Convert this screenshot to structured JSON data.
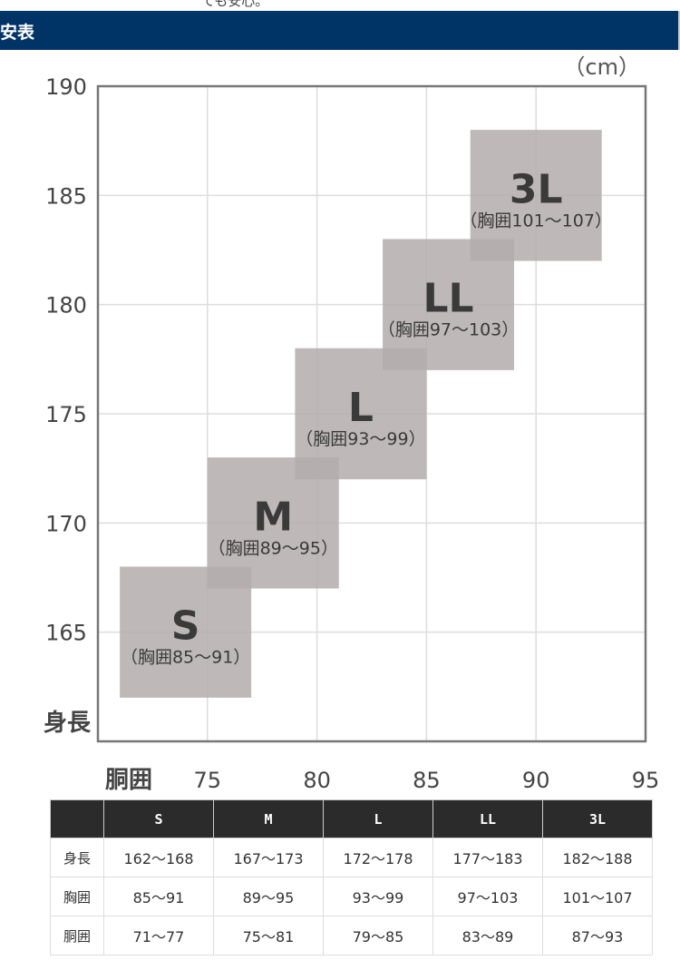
{
  "top_text": "ても安心。",
  "header": {
    "title": "安表",
    "color": "#003366"
  },
  "chart_data": {
    "type": "box-range",
    "unit_label": "（cm）",
    "xlabel": "胴囲",
    "ylabel": "身長",
    "xlim": [
      70,
      95
    ],
    "ylim": [
      160,
      190
    ],
    "xticks": [
      75,
      80,
      85,
      90,
      95
    ],
    "yticks": [
      165,
      170,
      175,
      180,
      185,
      190
    ],
    "grid": true,
    "box_color": "#b3acac",
    "boxes": [
      {
        "size": "S",
        "chest": "（胸囲85～91）",
        "waist": [
          71,
          77
        ],
        "height": [
          162,
          168
        ]
      },
      {
        "size": "M",
        "chest": "（胸囲89～95）",
        "waist": [
          75,
          81
        ],
        "height": [
          167,
          173
        ]
      },
      {
        "size": "L",
        "chest": "（胸囲93～99）",
        "waist": [
          79,
          85
        ],
        "height": [
          172,
          178
        ]
      },
      {
        "size": "LL",
        "chest": "（胸囲97～103）",
        "waist": [
          83,
          89
        ],
        "height": [
          177,
          183
        ]
      },
      {
        "size": "3L",
        "chest": "（胸囲101～107）",
        "waist": [
          87,
          93
        ],
        "height": [
          182,
          188
        ]
      }
    ]
  },
  "table": {
    "headers": [
      "",
      "S",
      "M",
      "L",
      "LL",
      "3L"
    ],
    "rows": [
      {
        "label": "身長",
        "values": [
          "162～168",
          "167～173",
          "172～178",
          "177～183",
          "182～188"
        ]
      },
      {
        "label": "胸囲",
        "values": [
          "85～91",
          "89～95",
          "93～99",
          "97～103",
          "101～107"
        ]
      },
      {
        "label": "胴囲",
        "values": [
          "71～77",
          "75～81",
          "79～85",
          "83～89",
          "87～93"
        ]
      }
    ]
  }
}
